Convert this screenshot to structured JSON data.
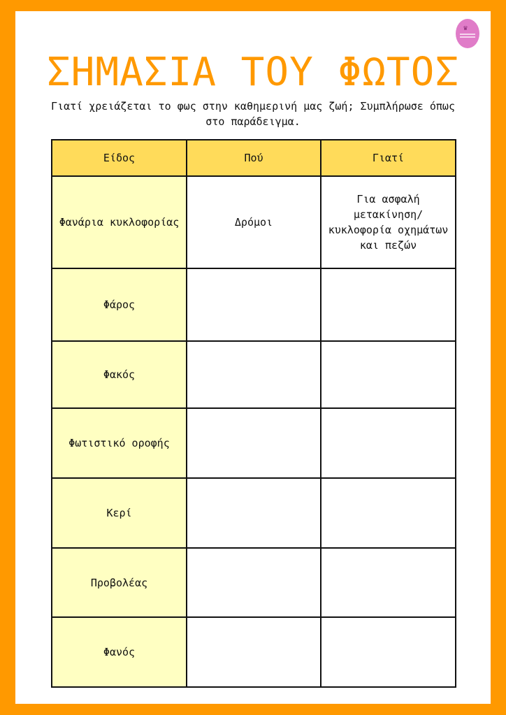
{
  "title": "ΣΗΜΑΣΙΑ ΤΟΥ ΦΩΤΟΣ",
  "subtitle": "Γιατί χρειάζεται το φως στην καθημερινή μας ζωή; Συμπλήρωσε όπως στο παράδειγμα.",
  "logo": {
    "shape": "pink oval with crown"
  },
  "colors": {
    "frame": "#ff9900",
    "header": "#ffdb5a",
    "first_column": "#ffffc2",
    "logo": "#e07cc8"
  },
  "table": {
    "headers": [
      "Είδος",
      "Πού",
      "Γιατί"
    ],
    "rows": [
      [
        "Φανάρια κυκλοφορίας",
        "Δρόμοι",
        "Για ασφαλή μετακίνηση/ κυκλοφορία οχημάτων και πεζών"
      ],
      [
        "Φάρος",
        "",
        ""
      ],
      [
        "Φακός",
        "",
        ""
      ],
      [
        "Φωτιστικό οροφής",
        "",
        ""
      ],
      [
        "Κερί",
        "",
        ""
      ],
      [
        "Προβολέας",
        "",
        ""
      ],
      [
        "Φανός",
        "",
        ""
      ]
    ]
  }
}
